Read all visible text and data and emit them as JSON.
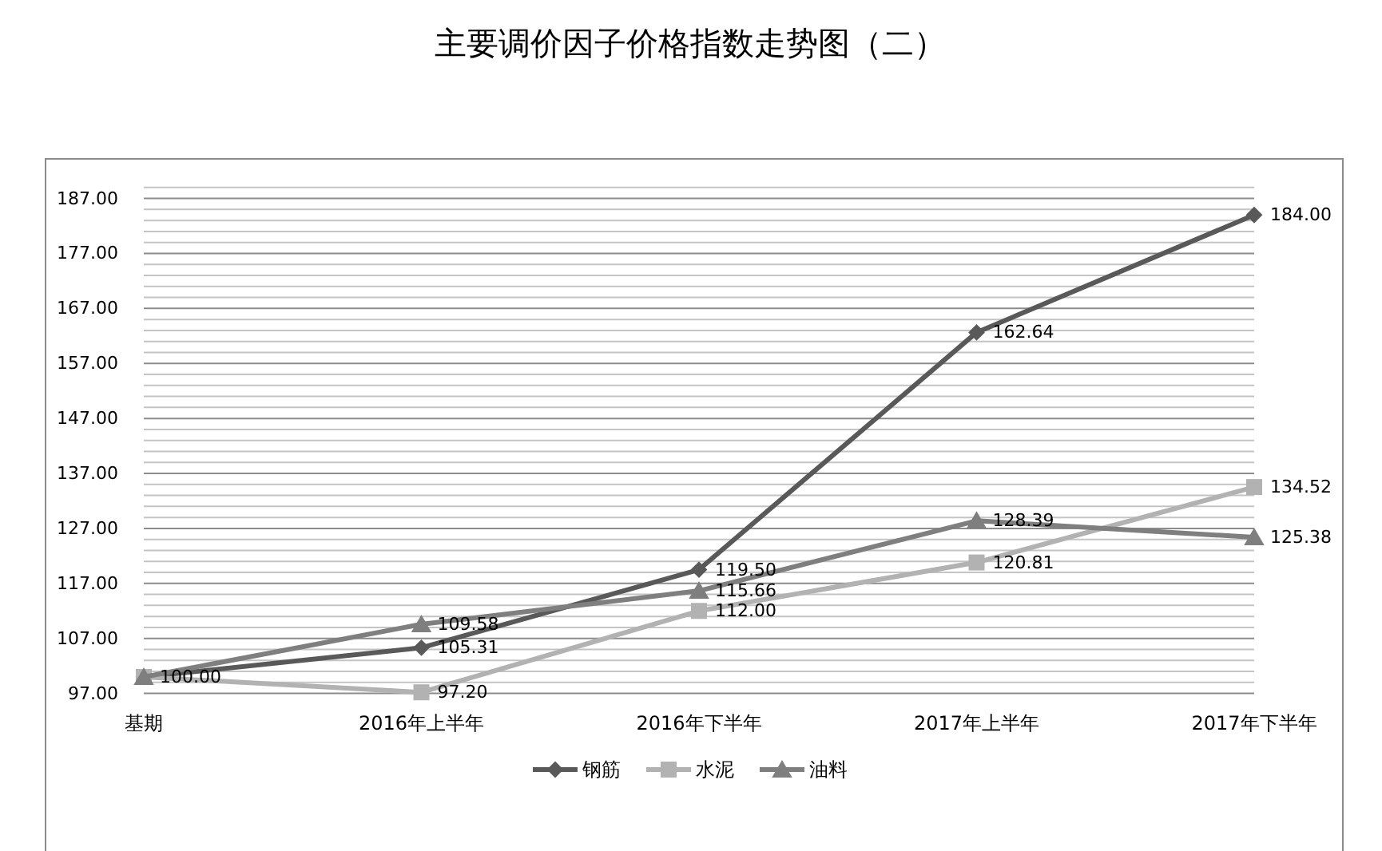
{
  "chart_data": {
    "type": "line",
    "title": "主要调价因子价格指数走势图（二）",
    "categories": [
      "基期",
      "2016年上半年",
      "2016年下半年",
      "2017年上半年",
      "2017年下半年"
    ],
    "series": [
      {
        "name": "钢筋",
        "color": "#595959",
        "marker": "diamond",
        "values": [
          100,
          105.31,
          119.5,
          162.64,
          184
        ],
        "value_labels": [
          "100.00",
          "105.31",
          "119.50",
          "162.64",
          "184.00"
        ]
      },
      {
        "name": "水泥",
        "color": "#b2b2b2",
        "marker": "square",
        "values": [
          100,
          97.2,
          112,
          120.81,
          134.52
        ],
        "value_labels": [
          null,
          "97.20",
          "112.00",
          "120.81",
          "134.52"
        ]
      },
      {
        "name": "油料",
        "color": "#7f7f7f",
        "marker": "triangle",
        "values": [
          100,
          109.58,
          115.66,
          128.39,
          125.38
        ],
        "value_labels": [
          null,
          "109.58",
          "115.66",
          "128.39",
          "125.38"
        ]
      }
    ],
    "ylim": [
      97,
      189
    ],
    "yticks": [
      {
        "value": 97,
        "label": "97.00"
      },
      {
        "value": 99,
        "label": null
      },
      {
        "value": 101,
        "label": null
      },
      {
        "value": 103,
        "label": null
      },
      {
        "value": 105,
        "label": null
      },
      {
        "value": 107,
        "label": "107.00"
      },
      {
        "value": 109,
        "label": null
      },
      {
        "value": 111,
        "label": null
      },
      {
        "value": 113,
        "label": null
      },
      {
        "value": 115,
        "label": null
      },
      {
        "value": 117,
        "label": "117.00"
      },
      {
        "value": 119,
        "label": null
      },
      {
        "value": 121,
        "label": null
      },
      {
        "value": 123,
        "label": null
      },
      {
        "value": 125,
        "label": null
      },
      {
        "value": 127,
        "label": "127.00"
      },
      {
        "value": 129,
        "label": null
      },
      {
        "value": 131,
        "label": null
      },
      {
        "value": 133,
        "label": null
      },
      {
        "value": 135,
        "label": null
      },
      {
        "value": 137,
        "label": "137.00"
      },
      {
        "value": 139,
        "label": null
      },
      {
        "value": 141,
        "label": null
      },
      {
        "value": 143,
        "label": null
      },
      {
        "value": 145,
        "label": null
      },
      {
        "value": 147,
        "label": "147.00"
      },
      {
        "value": 149,
        "label": null
      },
      {
        "value": 151,
        "label": null
      },
      {
        "value": 153,
        "label": null
      },
      {
        "value": 155,
        "label": null
      },
      {
        "value": 157,
        "label": "157.00"
      },
      {
        "value": 159,
        "label": null
      },
      {
        "value": 161,
        "label": null
      },
      {
        "value": 163,
        "label": null
      },
      {
        "value": 165,
        "label": null
      },
      {
        "value": 167,
        "label": "167.00"
      },
      {
        "value": 169,
        "label": null
      },
      {
        "value": 171,
        "label": null
      },
      {
        "value": 173,
        "label": null
      },
      {
        "value": 175,
        "label": null
      },
      {
        "value": 177,
        "label": "177.00"
      },
      {
        "value": 179,
        "label": null
      },
      {
        "value": 181,
        "label": null
      },
      {
        "value": 183,
        "label": null
      },
      {
        "value": 185,
        "label": null
      },
      {
        "value": 187,
        "label": "187.00"
      },
      {
        "value": 189,
        "label": null
      }
    ],
    "grid": "y",
    "legend": "bottom"
  }
}
